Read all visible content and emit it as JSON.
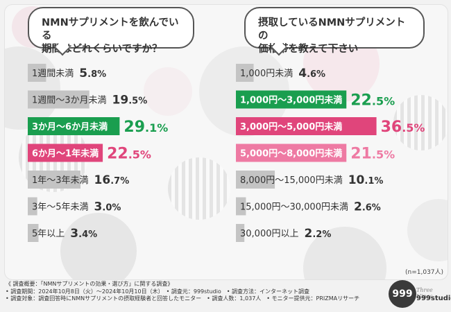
{
  "chart_data": [
    {
      "type": "bar",
      "orientation": "horizontal",
      "title": "NMNサプリメントを飲んでいる期間はどれくらいですか？",
      "title_lines": [
        "NMNサプリメントを飲んでいる",
        "期間はどれくらいですか？"
      ],
      "categories": [
        "1週間未満",
        "1週間〜3か月未満",
        "3か月〜6か月未満",
        "6か月〜1年未満",
        "1年〜3年未満",
        "3年〜5年未満",
        "5年以上"
      ],
      "values": [
        5.8,
        19.5,
        29.1,
        22.5,
        16.7,
        3.0,
        3.4
      ],
      "value_labels": [
        [
          "5",
          ".8%"
        ],
        [
          "19",
          ".5%"
        ],
        [
          "29",
          ".1%"
        ],
        [
          "22",
          ".5%"
        ],
        [
          "16",
          ".7%"
        ],
        [
          "3",
          ".0%"
        ],
        [
          "3",
          ".4%"
        ]
      ],
      "highlight": [
        null,
        null,
        "green",
        "pink",
        null,
        null,
        null
      ],
      "unit": "%"
    },
    {
      "type": "bar",
      "orientation": "horizontal",
      "title": "摂取しているNMNサプリメントの価格帯を教えて下さい",
      "title_lines": [
        "摂取しているNMNサプリメントの",
        "価格帯を教えて下さい"
      ],
      "categories": [
        "1,000円未満",
        "1,000円〜3,000円未満",
        "3,000円〜5,000円未満",
        "5,000円〜8,000円未満",
        "8,000円〜15,000円未満",
        "15,000円〜30,000円未満",
        "30,000円以上"
      ],
      "values": [
        4.6,
        22.5,
        36.5,
        21.5,
        10.1,
        2.6,
        2.2
      ],
      "value_labels": [
        [
          "4",
          ".6%"
        ],
        [
          "22",
          ".5%"
        ],
        [
          "36",
          ".5%"
        ],
        [
          "21",
          ".5%"
        ],
        [
          "10",
          ".1%"
        ],
        [
          "2",
          ".6%"
        ],
        [
          "2",
          ".2%"
        ]
      ],
      "highlight": [
        null,
        "green",
        "pink",
        "pink2",
        null,
        null,
        null
      ],
      "unit": "%"
    }
  ],
  "sample_note": "(n=1,037人)",
  "colors": {
    "green": "#1a9e4f",
    "pink": "#e0457b",
    "pink2": "#ee7aa3",
    "gray": "#c4c4c4",
    "text": "#333333"
  },
  "footer": {
    "line1": "《 調査概要：「NMNサプリメントの効果・選び方」に関する調査》",
    "line2": "• 調査期間：2024年10月8日（火）〜2024年10月10日（木）　• 調査元：999studio　• 調査方法：インターネット調査",
    "line3": "• 調査対象：調査回答時にNMNサプリメントの摂取経験者と回答したモニター　• 調査人数：1,037人　• モニター提供元：PRIZMAリサーチ"
  },
  "logo": {
    "mark": "999",
    "sub": "Three Nines",
    "name": "999studio"
  }
}
